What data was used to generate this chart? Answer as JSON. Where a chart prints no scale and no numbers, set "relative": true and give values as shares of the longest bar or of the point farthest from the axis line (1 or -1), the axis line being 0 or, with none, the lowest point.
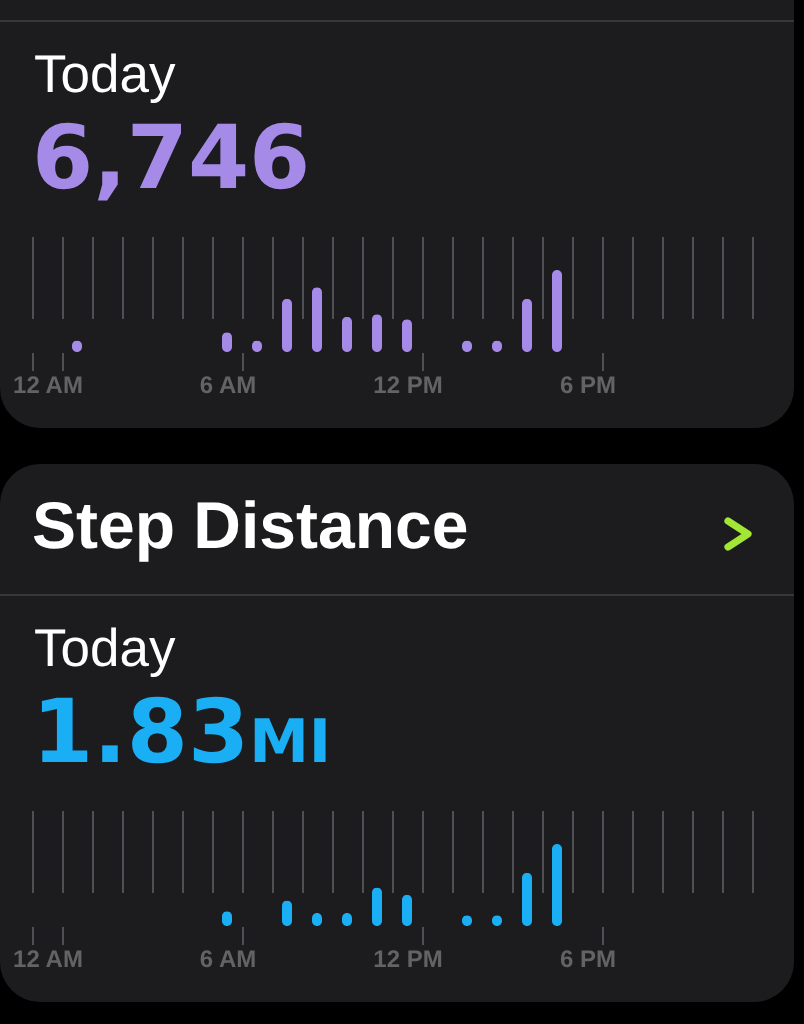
{
  "chart_data": [
    {
      "type": "bar",
      "subtitle": "Today",
      "annotations": [
        "6,746"
      ],
      "categories": [
        "12 AM",
        null,
        null,
        null,
        null,
        null,
        "6 AM",
        null,
        null,
        null,
        null,
        null,
        "12 PM",
        null,
        null,
        null,
        null,
        null,
        "6 PM",
        null,
        null,
        null,
        null,
        null
      ],
      "values": [
        null,
        0.14,
        null,
        null,
        null,
        null,
        0.24,
        0.14,
        0.65,
        0.79,
        0.43,
        0.46,
        0.4,
        null,
        0.14,
        0.14,
        0.65,
        1,
        null,
        null,
        null,
        null,
        null,
        null
      ],
      "color": "#a58ae8",
      "relative": true,
      "grid": "x"
    },
    {
      "type": "bar",
      "title": "Step Distance",
      "subtitle": "Today",
      "annotations": [
        "1.83MI"
      ],
      "categories": [
        "12 AM",
        null,
        null,
        null,
        null,
        null,
        "6 AM",
        null,
        null,
        null,
        null,
        null,
        "12 PM",
        null,
        null,
        null,
        null,
        null,
        "6 PM",
        null,
        null,
        null,
        null,
        null
      ],
      "values": [
        null,
        null,
        null,
        null,
        null,
        null,
        0.18,
        null,
        0.31,
        0.16,
        0.16,
        0.47,
        0.38,
        null,
        0.13,
        0.13,
        0.65,
        1,
        null,
        null,
        null,
        null,
        null,
        null
      ],
      "color": "#1aaef5",
      "relative": true,
      "grid": "x"
    }
  ]
}
